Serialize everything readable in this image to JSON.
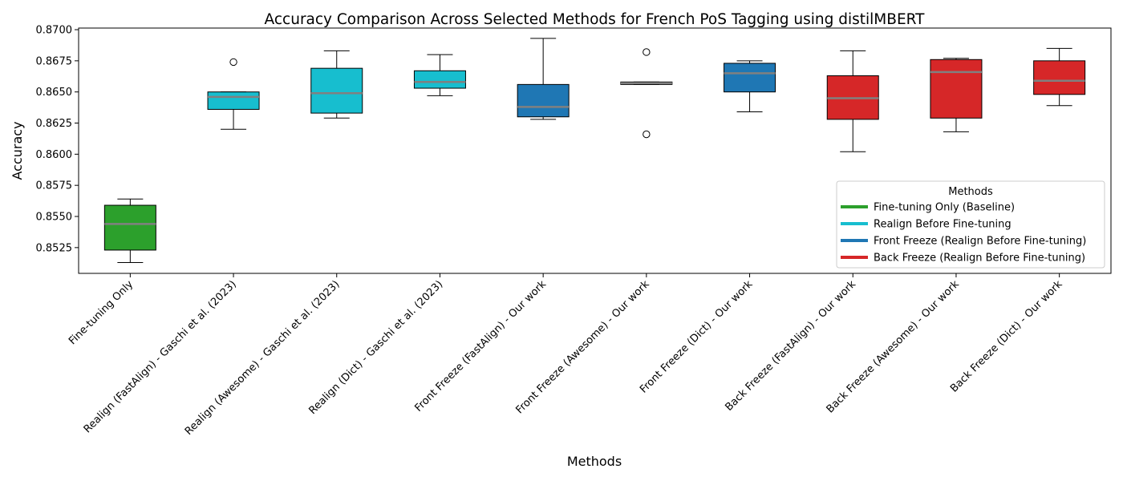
{
  "chart_data": {
    "type": "box",
    "title": "Accuracy Comparison Across Selected Methods for French PoS Tagging using distilMBERT",
    "xlabel": "Methods",
    "ylabel": "Accuracy",
    "ylim": [
      0.85043,
      0.87013
    ],
    "yticks": [
      "0.8525",
      "0.8550",
      "0.8575",
      "0.8600",
      "0.8625",
      "0.8650",
      "0.8675",
      "0.8700"
    ],
    "ytick_values": [
      0.8525,
      0.855,
      0.8575,
      0.86,
      0.8625,
      0.865,
      0.8675,
      0.87
    ],
    "grid": false,
    "median_color": "#808080",
    "categories": [
      "Fine-tuning Only",
      "Realign (FastAlign) - Gaschi et al. (2023)",
      "Realign (Awesome) - Gaschi et al. (2023)",
      "Realign (Dict) - Gaschi et al. (2023)",
      "Front Freeze (FastAlign) - Our work",
      "Front Freeze (Awesome) - Our work",
      "Front Freeze (Dict) - Our work",
      "Back Freeze (FastAlign) - Our work",
      "Back Freeze (Awesome) - Our work",
      "Back Freeze (Dict) - Our work"
    ],
    "boxes": [
      {
        "group": 0,
        "whislo": 0.8513,
        "q1": 0.8523,
        "med": 0.8544,
        "q3": 0.8559,
        "whishi": 0.8564,
        "fliers": []
      },
      {
        "group": 1,
        "whislo": 0.862,
        "q1": 0.8636,
        "med": 0.8646,
        "q3": 0.865,
        "whishi": 0.865,
        "fliers": [
          0.8674
        ]
      },
      {
        "group": 1,
        "whislo": 0.8629,
        "q1": 0.8633,
        "med": 0.8649,
        "q3": 0.8669,
        "whishi": 0.8683,
        "fliers": []
      },
      {
        "group": 1,
        "whislo": 0.8647,
        "q1": 0.8653,
        "med": 0.8658,
        "q3": 0.8667,
        "whishi": 0.868,
        "fliers": []
      },
      {
        "group": 2,
        "whislo": 0.8628,
        "q1": 0.863,
        "med": 0.8638,
        "q3": 0.8656,
        "whishi": 0.8693,
        "fliers": []
      },
      {
        "group": 2,
        "whislo": 0.8656,
        "q1": 0.8656,
        "med": 0.8657,
        "q3": 0.8658,
        "whishi": 0.8658,
        "fliers": [
          0.8682,
          0.8616
        ]
      },
      {
        "group": 2,
        "whislo": 0.8634,
        "q1": 0.865,
        "med": 0.8665,
        "q3": 0.8673,
        "whishi": 0.8675,
        "fliers": []
      },
      {
        "group": 3,
        "whislo": 0.8602,
        "q1": 0.8628,
        "med": 0.8645,
        "q3": 0.8663,
        "whishi": 0.8683,
        "fliers": []
      },
      {
        "group": 3,
        "whislo": 0.8618,
        "q1": 0.8629,
        "med": 0.8666,
        "q3": 0.8676,
        "whishi": 0.8677,
        "fliers": []
      },
      {
        "group": 3,
        "whislo": 0.8639,
        "q1": 0.8648,
        "med": 0.8659,
        "q3": 0.8675,
        "whishi": 0.8685,
        "fliers": []
      }
    ],
    "legend": {
      "title": "Methods",
      "placement": "lower-right",
      "entries": [
        {
          "label": "Fine-tuning Only (Baseline)",
          "color": "#2ca02c"
        },
        {
          "label": "Realign Before Fine-tuning",
          "color": "#17becf"
        },
        {
          "label": "Front Freeze (Realign Before Fine-tuning)",
          "color": "#1f77b4"
        },
        {
          "label": "Back Freeze (Realign Before Fine-tuning)",
          "color": "#d62728"
        }
      ]
    }
  }
}
